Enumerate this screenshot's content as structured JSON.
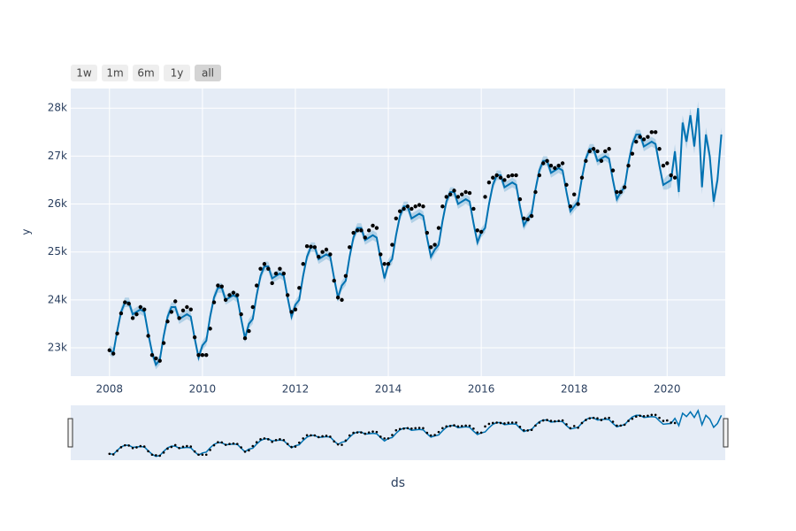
{
  "chart_data": {
    "type": "line",
    "buttons": [
      "1w",
      "1m",
      "6m",
      "1y",
      "all"
    ],
    "active_button": 4,
    "xlabel": "ds",
    "ylabel": "y",
    "xlim": [
      "2007-03",
      "2021-04"
    ],
    "xticks": [
      2008,
      2010,
      2012,
      2014,
      2016,
      2018,
      2020
    ],
    "ylim": [
      22410,
      28410
    ],
    "yticks": [
      {
        "value": 23000,
        "label": "23k"
      },
      {
        "value": 24000,
        "label": "24k"
      },
      {
        "value": 25000,
        "label": "25k"
      },
      {
        "value": 26000,
        "label": "26k"
      },
      {
        "value": 27000,
        "label": "27k"
      },
      {
        "value": 28000,
        "label": "28k"
      }
    ],
    "grid": true,
    "range_slider": true,
    "x": [
      "2008-01",
      "2008-02",
      "2008-03",
      "2008-04",
      "2008-05",
      "2008-06",
      "2008-07",
      "2008-08",
      "2008-09",
      "2008-10",
      "2008-11",
      "2008-12",
      "2009-01",
      "2009-02",
      "2009-03",
      "2009-04",
      "2009-05",
      "2009-06",
      "2009-07",
      "2009-08",
      "2009-09",
      "2009-10",
      "2009-11",
      "2009-12",
      "2010-01",
      "2010-02",
      "2010-03",
      "2010-04",
      "2010-05",
      "2010-06",
      "2010-07",
      "2010-08",
      "2010-09",
      "2010-10",
      "2010-11",
      "2010-12",
      "2011-01",
      "2011-02",
      "2011-03",
      "2011-04",
      "2011-05",
      "2011-06",
      "2011-07",
      "2011-08",
      "2011-09",
      "2011-10",
      "2011-11",
      "2011-12",
      "2012-01",
      "2012-02",
      "2012-03",
      "2012-04",
      "2012-05",
      "2012-06",
      "2012-07",
      "2012-08",
      "2012-09",
      "2012-10",
      "2012-11",
      "2012-12",
      "2013-01",
      "2013-02",
      "2013-03",
      "2013-04",
      "2013-05",
      "2013-06",
      "2013-07",
      "2013-08",
      "2013-09",
      "2013-10",
      "2013-11",
      "2013-12",
      "2014-01",
      "2014-02",
      "2014-03",
      "2014-04",
      "2014-05",
      "2014-06",
      "2014-07",
      "2014-08",
      "2014-09",
      "2014-10",
      "2014-11",
      "2014-12",
      "2015-01",
      "2015-02",
      "2015-03",
      "2015-04",
      "2015-05",
      "2015-06",
      "2015-07",
      "2015-08",
      "2015-09",
      "2015-10",
      "2015-11",
      "2015-12",
      "2016-01",
      "2016-02",
      "2016-03",
      "2016-04",
      "2016-05",
      "2016-06",
      "2016-07",
      "2016-08",
      "2016-09",
      "2016-10",
      "2016-11",
      "2016-12",
      "2017-01",
      "2017-02",
      "2017-03",
      "2017-04",
      "2017-05",
      "2017-06",
      "2017-07",
      "2017-08",
      "2017-09",
      "2017-10",
      "2017-11",
      "2017-12",
      "2018-01",
      "2018-02",
      "2018-03",
      "2018-04",
      "2018-05",
      "2018-06",
      "2018-07",
      "2018-08",
      "2018-09",
      "2018-10",
      "2018-11",
      "2018-12",
      "2019-01",
      "2019-02",
      "2019-03",
      "2019-04",
      "2019-05",
      "2019-06",
      "2019-07",
      "2019-08",
      "2019-09",
      "2019-10",
      "2019-11",
      "2019-12",
      "2020-01",
      "2020-02",
      "2020-03",
      "2020-04",
      "2020-05",
      "2020-06",
      "2020-07",
      "2020-08",
      "2020-09",
      "2020-10",
      "2020-11",
      "2020-12",
      "2021-01",
      "2021-02",
      "2021-03"
    ],
    "series": [
      {
        "mode": "markers",
        "color": "#000000",
        "values": [
          22950,
          22880,
          23300,
          23720,
          23950,
          23920,
          23620,
          23700,
          23850,
          23800,
          23250,
          22850,
          22780,
          22730,
          23100,
          23550,
          23750,
          23970,
          23620,
          23780,
          23850,
          23800,
          23220,
          22850,
          22850,
          22850,
          23400,
          23950,
          24300,
          24280,
          24000,
          24100,
          24150,
          24100,
          23700,
          23200,
          23350,
          23850,
          24300,
          24650,
          24750,
          24650,
          24350,
          24550,
          24650,
          24550,
          24100,
          23750,
          23800,
          24250,
          24750,
          25120,
          25110,
          25100,
          24900,
          25000,
          25050,
          24950,
          24400,
          24050,
          24000,
          24500,
          25100,
          25400,
          25450,
          25450,
          25300,
          25450,
          25550,
          25500,
          24950,
          24750,
          24750,
          25150,
          25700,
          25850,
          25900,
          25950,
          25900,
          25950,
          25980,
          25950,
          25400,
          25100,
          25150,
          25500,
          25950,
          26150,
          26200,
          26280,
          26150,
          26200,
          26250,
          26230,
          25900,
          25450,
          25420,
          26150,
          26450,
          26550,
          26600,
          26550,
          26500,
          26580,
          26600,
          26600,
          26100,
          25700,
          25680,
          25750,
          26250,
          26600,
          26850,
          26900,
          26800,
          26750,
          26800,
          26850,
          26400,
          25950,
          26200,
          26000,
          26550,
          26900,
          27100,
          27150,
          27100,
          26900,
          27100,
          27150,
          26700,
          26250,
          26250,
          26350,
          26800,
          27050,
          27300,
          27400,
          27350,
          27400,
          27500,
          27500,
          27150,
          26800,
          26850,
          26600,
          26550,
          null,
          null,
          null,
          null,
          null,
          null,
          null,
          null,
          null,
          null,
          null,
          null
        ]
      },
      {
        "mode": "lines",
        "color": "#0072B2",
        "band_color": "rgba(0,114,178,0.22)",
        "values": [
          22950,
          22900,
          23350,
          23750,
          23950,
          23950,
          23700,
          23750,
          23800,
          23750,
          23300,
          22900,
          22650,
          22750,
          23250,
          23650,
          23850,
          23850,
          23600,
          23650,
          23700,
          23650,
          23200,
          22800,
          23050,
          23150,
          23650,
          24050,
          24250,
          24250,
          24000,
          24050,
          24100,
          24050,
          23600,
          23200,
          23500,
          23600,
          24100,
          24500,
          24700,
          24700,
          24450,
          24500,
          24550,
          24500,
          24050,
          23650,
          23900,
          24000,
          24500,
          24900,
          25100,
          25100,
          24850,
          24900,
          24950,
          24900,
          24450,
          24050,
          24300,
          24400,
          24900,
          25300,
          25500,
          25500,
          25250,
          25300,
          25350,
          25300,
          24850,
          24450,
          24750,
          24850,
          25350,
          25750,
          25950,
          25950,
          25700,
          25750,
          25800,
          25750,
          25300,
          24900,
          25050,
          25150,
          25650,
          26050,
          26250,
          26250,
          26000,
          26050,
          26100,
          26050,
          25600,
          25200,
          25400,
          25500,
          26000,
          26400,
          26600,
          26600,
          26350,
          26400,
          26450,
          26400,
          25950,
          25550,
          25700,
          25800,
          26300,
          26700,
          26900,
          26900,
          26650,
          26700,
          26750,
          26700,
          26250,
          25850,
          25950,
          26050,
          26550,
          26950,
          27150,
          27150,
          26900,
          26950,
          27000,
          26950,
          26500,
          26100,
          26250,
          26350,
          26850,
          27250,
          27450,
          27450,
          27200,
          27250,
          27300,
          27250,
          26800,
          26400,
          26450,
          26500,
          27100,
          26250,
          27700,
          27300,
          27850,
          27200,
          28000,
          26350,
          27450,
          27000,
          26050,
          26500,
          27450
        ],
        "lower": [
          22850,
          22800,
          23250,
          23650,
          23850,
          23850,
          23600,
          23650,
          23700,
          23650,
          23200,
          22800,
          22550,
          22650,
          23150,
          23550,
          23750,
          23750,
          23500,
          23550,
          23600,
          23550,
          23100,
          22700,
          22950,
          23050,
          23550,
          23950,
          24150,
          24150,
          23900,
          23950,
          24000,
          23950,
          23500,
          23100,
          23400,
          23500,
          24000,
          24400,
          24600,
          24600,
          24350,
          24400,
          24450,
          24400,
          23950,
          23550,
          23800,
          23900,
          24400,
          24800,
          25000,
          25000,
          24750,
          24800,
          24850,
          24800,
          24350,
          23950,
          24200,
          24300,
          24800,
          25200,
          25400,
          25400,
          25150,
          25200,
          25250,
          25200,
          24750,
          24350,
          24650,
          24750,
          25250,
          25650,
          25850,
          25850,
          25600,
          25650,
          25700,
          25650,
          25200,
          24800,
          24950,
          25050,
          25550,
          25950,
          26150,
          26150,
          25900,
          25950,
          26000,
          25950,
          25500,
          25100,
          25300,
          25400,
          25900,
          26300,
          26500,
          26500,
          26250,
          26300,
          26350,
          26300,
          25850,
          25450,
          25600,
          25700,
          26200,
          26600,
          26800,
          26800,
          26550,
          26600,
          26650,
          26600,
          26150,
          25750,
          25850,
          25950,
          26450,
          26850,
          27050,
          27050,
          26800,
          26850,
          26900,
          26850,
          26400,
          26000,
          26150,
          26250,
          26750,
          27150,
          27350,
          27350,
          27100,
          27150,
          27200,
          27150,
          26700,
          26300,
          26300,
          26350,
          26950,
          26100,
          27550,
          27150,
          27700,
          27050,
          27850,
          26200,
          27300,
          26850,
          25900,
          26350,
          27300
        ],
        "upper": [
          23050,
          23000,
          23450,
          23850,
          24050,
          24050,
          23800,
          23850,
          23900,
          23850,
          23400,
          23000,
          22750,
          22850,
          23350,
          23750,
          23950,
          23950,
          23700,
          23750,
          23800,
          23750,
          23300,
          22900,
          23150,
          23250,
          23750,
          24150,
          24350,
          24350,
          24100,
          24150,
          24200,
          24150,
          23700,
          23300,
          23600,
          23700,
          24200,
          24600,
          24800,
          24800,
          24550,
          24600,
          24650,
          24600,
          24150,
          23750,
          24000,
          24100,
          24600,
          25000,
          25200,
          25200,
          24950,
          25000,
          25050,
          25000,
          24550,
          24150,
          24400,
          24500,
          25000,
          25400,
          25600,
          25600,
          25350,
          25400,
          25450,
          25400,
          24950,
          24550,
          24850,
          24950,
          25450,
          25850,
          26050,
          26050,
          25800,
          25850,
          25900,
          25850,
          25400,
          25000,
          25150,
          25250,
          25750,
          26150,
          26350,
          26350,
          26100,
          26150,
          26200,
          26150,
          25700,
          25300,
          25500,
          25600,
          26100,
          26500,
          26700,
          26700,
          26450,
          26500,
          26550,
          26500,
          26050,
          25650,
          25800,
          25900,
          26400,
          26800,
          27000,
          27000,
          26750,
          26800,
          26850,
          26800,
          26350,
          25950,
          26050,
          26150,
          26650,
          27050,
          27250,
          27250,
          27000,
          27050,
          27100,
          27050,
          26600,
          26200,
          26350,
          26450,
          26950,
          27350,
          27550,
          27550,
          27300,
          27350,
          27400,
          27350,
          26900,
          26500,
          26600,
          26650,
          27250,
          26400,
          27850,
          27450,
          28000,
          27350,
          28150,
          26500,
          27600,
          27150,
          26200,
          26650,
          27600
        ]
      }
    ]
  }
}
